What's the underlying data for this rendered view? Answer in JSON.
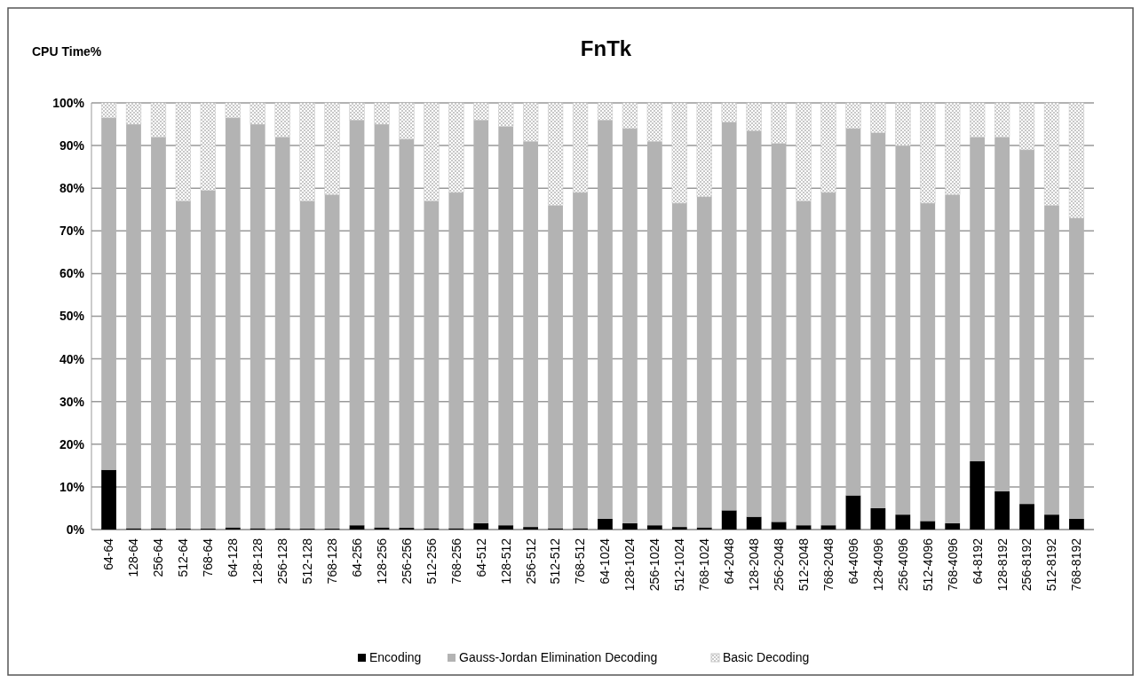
{
  "chart_data": {
    "type": "bar",
    "title": "FnTk",
    "ylabel": "CPU Time%",
    "stacked": true,
    "grid": "y",
    "legend": "bottom",
    "categories": [
      "64-64",
      "128-64",
      "256-64",
      "512-64",
      "768-64",
      "64-128",
      "128-128",
      "256-128",
      "512-128",
      "768-128",
      "64-256",
      "128-256",
      "256-256",
      "512-256",
      "768-256",
      "64-512",
      "128-512",
      "256-512",
      "512-512",
      "768-512",
      "64-1024",
      "128-1024",
      "256-1024",
      "512-1024",
      "768-1024",
      "64-2048",
      "128-2048",
      "256-2048",
      "512-2048",
      "768-2048",
      "64-4096",
      "128-4096",
      "256-4096",
      "512-4096",
      "768-4096",
      "64-8192",
      "128-8192",
      "256-8192",
      "512-8192",
      "768-8192"
    ],
    "ylim": [
      0,
      100
    ],
    "yticks": [
      {
        "value": 0,
        "label": "0%"
      },
      {
        "value": 10,
        "label": "10%"
      },
      {
        "value": 20,
        "label": "20%"
      },
      {
        "value": 30,
        "label": "30%"
      },
      {
        "value": 40,
        "label": "40%"
      },
      {
        "value": 50,
        "label": "50%"
      },
      {
        "value": 60,
        "label": "60%"
      },
      {
        "value": 70,
        "label": "70%"
      },
      {
        "value": 80,
        "label": "80%"
      },
      {
        "value": 90,
        "label": "90%"
      },
      {
        "value": 100,
        "label": "100%"
      }
    ],
    "series": [
      {
        "name": "Encoding",
        "color": "#000000",
        "values": [
          14,
          0.3,
          0.3,
          0.2,
          0.2,
          0.5,
          0.3,
          0.3,
          0.2,
          0.2,
          1,
          0.5,
          0.4,
          0.3,
          0.3,
          1.5,
          1,
          0.6,
          0.3,
          0.3,
          2.5,
          1.5,
          1,
          0.6,
          0.5,
          4.5,
          3,
          1.8,
          1,
          1,
          8,
          5,
          3.5,
          2,
          1.5,
          16,
          9,
          6,
          3.5,
          2.5
        ]
      },
      {
        "name": "Gauss-Jordan Elimination  Decoding",
        "color": "#b3b3b3",
        "values": [
          82.5,
          94.7,
          91.7,
          76.8,
          79.3,
          96,
          94.7,
          91.7,
          76.8,
          78.3,
          95,
          94.5,
          91.1,
          76.7,
          78.7,
          94.5,
          93.5,
          90.4,
          75.7,
          78.7,
          93.5,
          92.5,
          90,
          75.9,
          77.5,
          91,
          90.5,
          88.7,
          76,
          78,
          86,
          88,
          86.5,
          74.5,
          77,
          76,
          83,
          83,
          72.5,
          70.5
        ]
      },
      {
        "name": "Basic Decoding",
        "color": "#c8c8c8",
        "values": [
          3.5,
          5,
          8,
          23,
          20.5,
          3.5,
          5,
          8,
          23,
          21.5,
          4,
          5,
          8.5,
          23,
          21,
          4,
          5.5,
          9,
          24,
          21,
          4,
          6,
          9,
          23.5,
          22,
          4.5,
          6.5,
          9.5,
          23,
          21,
          6,
          7,
          10,
          23.5,
          21.5,
          8,
          8,
          11,
          24,
          27
        ]
      }
    ]
  }
}
